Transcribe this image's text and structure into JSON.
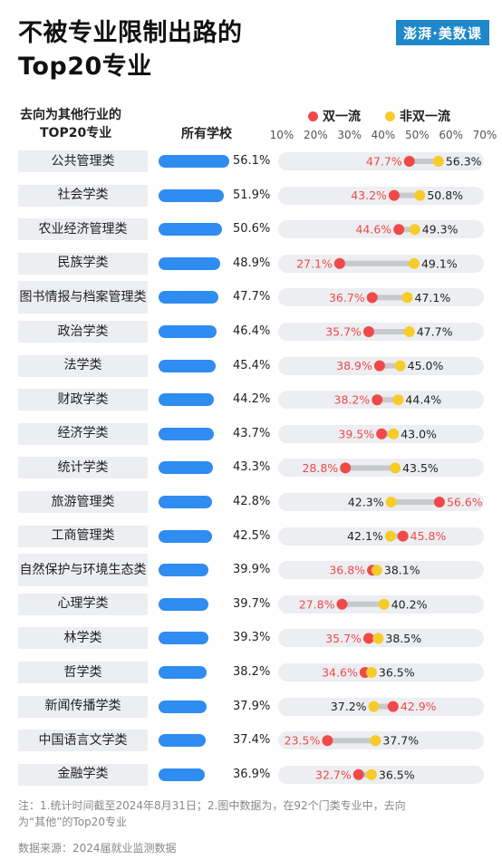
{
  "header": {
    "title_line1": "不被专业限制出路的",
    "title_line2": "Top20专业",
    "logo_text": "澎湃·美数课",
    "col_category_line1": "去向为其他行业的",
    "col_category_line2": "TOP20专业",
    "col_all": "所有学校",
    "legend_a": "双一流",
    "legend_b": "非双一流"
  },
  "colors": {
    "all_bar": "#2f8cf0",
    "double_first_class": "#f0494a",
    "non_double_first_class": "#f7cc2a",
    "connector": "#c8c9cc"
  },
  "footer": {
    "note_line1": "注：1.统计时间截至2024年8月31日；2.图中数据为，在92个门类专业中，去向",
    "note_line2": "为“其他”的Top20专业",
    "source": "数据来源：2024届就业监测数据"
  },
  "chart_data": {
    "type": "bar",
    "title": "不被专业限制出路的Top20专业",
    "axis_ticks": [
      "10%",
      "20%",
      "30%",
      "40%",
      "50%",
      "60%",
      "70%"
    ],
    "xlim": [
      10,
      70
    ],
    "categories": [
      "公共管理类",
      "社会学类",
      "农业经济管理类",
      "民族学类",
      "图书情报与\n档案管理类",
      "政治学类",
      "法学类",
      "财政学类",
      "经济学类",
      "统计学类",
      "旅游管理类",
      "工商管理类",
      "自然保护与\n环境生态类",
      "心理学类",
      "林学类",
      "哲学类",
      "新闻传播学类",
      "中国语言文学类",
      "金融学类"
    ],
    "series": [
      {
        "name": "所有学校",
        "values": [
          56.1,
          51.9,
          50.6,
          48.9,
          47.7,
          46.4,
          45.4,
          44.2,
          43.7,
          43.3,
          42.8,
          42.5,
          39.9,
          39.7,
          39.3,
          38.2,
          37.9,
          37.4,
          36.9
        ]
      },
      {
        "name": "双一流",
        "values": [
          47.7,
          43.2,
          44.6,
          27.1,
          36.7,
          35.7,
          38.9,
          38.2,
          39.5,
          28.8,
          56.6,
          45.8,
          36.8,
          27.8,
          35.7,
          34.6,
          42.9,
          23.5,
          32.7
        ]
      },
      {
        "name": "非双一流",
        "values": [
          56.3,
          50.8,
          49.3,
          49.1,
          47.1,
          47.7,
          45.0,
          44.4,
          43.0,
          43.5,
          42.3,
          42.1,
          38.1,
          40.2,
          38.5,
          36.5,
          37.2,
          37.7,
          36.5
        ]
      }
    ]
  }
}
